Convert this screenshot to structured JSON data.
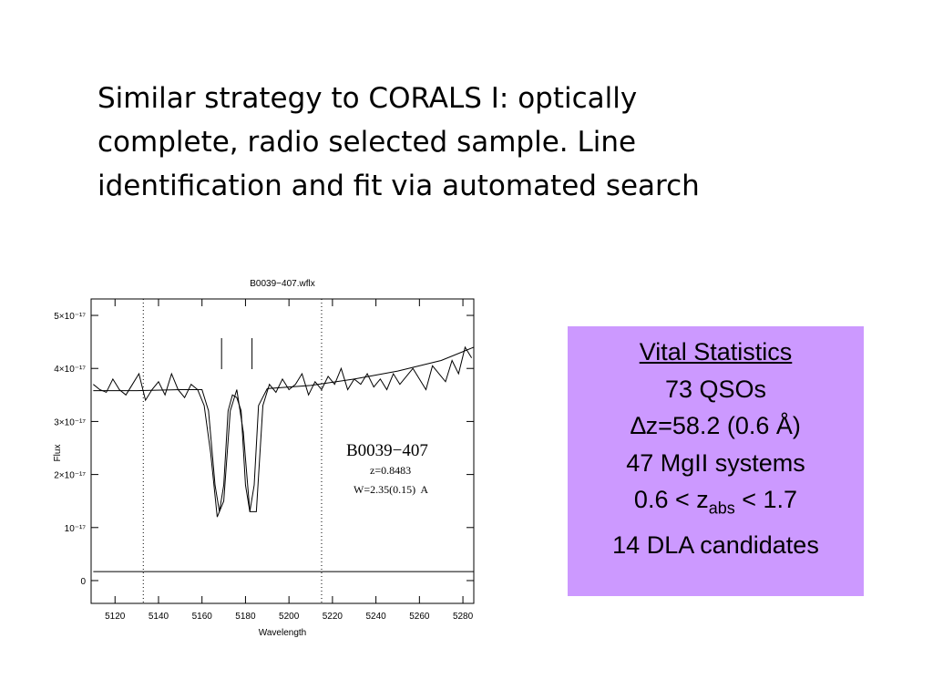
{
  "text": [
    "Similar strategy to CORALS I: optically",
    "complete, radio selected sample.  Line",
    "identification and fit via automated search"
  ],
  "stats": {
    "title": "Vital Statistics",
    "lines": [
      "73 QSOs",
      "∆z=58.2 (0.6 Å)",
      "47 MgII systems"
    ],
    "range": {
      "head": "0.6 < z",
      "sub": "abs",
      "tail": " < 1.7"
    },
    "last": "14 DLA candidates"
  },
  "chart_data": {
    "type": "line",
    "title": "B0039−407.wflx",
    "xlabel": "Wavelength",
    "ylabel": "Flux",
    "annotations": [
      "B0039−407",
      "z=0.8483",
      "W=2.35(0.15)  A"
    ],
    "xlim": [
      5109,
      5285
    ],
    "ylim": [
      -4.3e-18,
      5.31e-17
    ],
    "xticks": [
      5120,
      5140,
      5160,
      5180,
      5200,
      5220,
      5240,
      5260,
      5280
    ],
    "yticks": [
      0,
      {
        "value": 1e-17,
        "label": "10⁻¹⁷"
      },
      {
        "value": 2e-17,
        "label": "2×10⁻¹⁷"
      },
      {
        "value": 3e-17,
        "label": "3×10⁻¹⁷"
      },
      {
        "value": 4e-17,
        "label": "4×10⁻¹⁷"
      },
      {
        "value": 5e-17,
        "label": "5×10⁻¹⁷"
      }
    ],
    "vlines": [
      5133,
      5215
    ],
    "line_marks": [
      5169,
      5183
    ],
    "series": [
      {
        "color": "#000000",
        "x": [
          5110,
          5113,
          5116,
          5119,
          5122,
          5125,
          5128,
          5131,
          5134,
          5137,
          5140,
          5143,
          5146,
          5149,
          5152,
          5155,
          5158,
          5161,
          5164,
          5167,
          5170,
          5173,
          5176,
          5179,
          5182,
          5185,
          5188,
          5191,
          5194,
          5197,
          5200,
          5203,
          5206,
          5209,
          5212,
          5215,
          5218,
          5221,
          5224,
          5227,
          5230,
          5233,
          5236,
          5239,
          5242,
          5245,
          5248,
          5251,
          5254,
          5257,
          5260,
          5263,
          5266,
          5269,
          5272,
          5275,
          5278,
          5281,
          5284
        ],
        "values": [
          3.7e-17,
          3.6e-17,
          3.55e-17,
          3.8e-17,
          3.6e-17,
          3.5e-17,
          3.7e-17,
          3.9e-17,
          3.4e-17,
          3.6e-17,
          3.75e-17,
          3.5e-17,
          3.9e-17,
          3.6e-17,
          3.45e-17,
          3.7e-17,
          3.6e-17,
          3.3e-17,
          2.4e-17,
          1.2e-17,
          1.5e-17,
          3.2e-17,
          3.6e-17,
          2.8e-17,
          1.3e-17,
          1.3e-17,
          3.3e-17,
          3.7e-17,
          3.55e-17,
          3.8e-17,
          3.6e-17,
          3.7e-17,
          3.9e-17,
          3.5e-17,
          3.75e-17,
          3.6e-17,
          3.85e-17,
          3.7e-17,
          4e-17,
          3.6e-17,
          3.8e-17,
          3.7e-17,
          3.9e-17,
          3.65e-17,
          3.8e-17,
          3.6e-17,
          3.9e-17,
          3.7e-17,
          3.85e-17,
          4e-17,
          3.8e-17,
          3.6e-17,
          4.05e-17,
          3.9e-17,
          3.75e-17,
          4.15e-17,
          3.9e-17,
          4.4e-17,
          4.2e-17
        ]
      },
      {
        "color": "#000000",
        "x": [
          5110,
          5130,
          5150,
          5160,
          5163,
          5166,
          5168,
          5170,
          5172,
          5174,
          5176,
          5178,
          5180,
          5182,
          5184,
          5186,
          5190,
          5210,
          5230,
          5250,
          5270,
          5285
        ],
        "values": [
          3.58e-17,
          3.58e-17,
          3.6e-17,
          3.6e-17,
          3.2e-17,
          1.8e-17,
          1.3e-17,
          1.8e-17,
          3.2e-17,
          3.5e-17,
          3.45e-17,
          3.2e-17,
          1.8e-17,
          1.3e-17,
          1.8e-17,
          3.3e-17,
          3.62e-17,
          3.68e-17,
          3.8e-17,
          3.95e-17,
          4.15e-17,
          4.4e-17
        ]
      },
      {
        "color": "#000000",
        "x": [
          5110,
          5285
        ],
        "values": [
          1.7e-18,
          1.7e-18
        ]
      }
    ]
  }
}
